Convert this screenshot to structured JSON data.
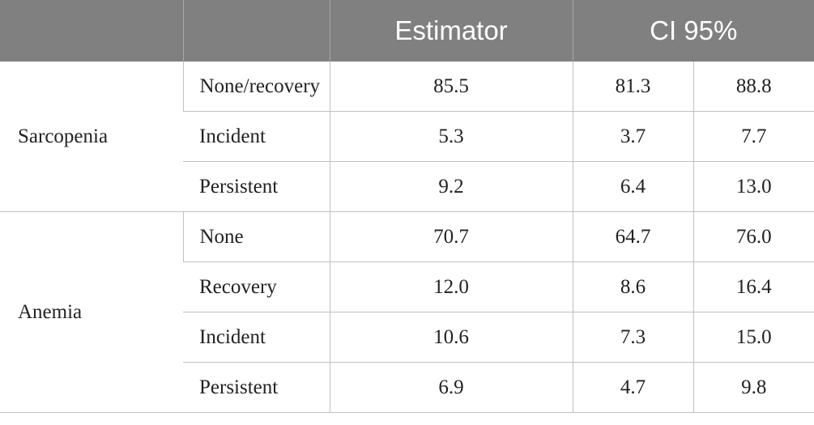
{
  "header": {
    "blank1": "",
    "blank2": "",
    "estimator": "Estimator",
    "ci": "CI 95%"
  },
  "groups": [
    {
      "name": "Sarcopenia",
      "rows": [
        {
          "label": "None/recovery",
          "estimator": "85.5",
          "ci_low": "81.3",
          "ci_high": "88.8"
        },
        {
          "label": "Incident",
          "estimator": "5.3",
          "ci_low": "3.7",
          "ci_high": "7.7"
        },
        {
          "label": "Persistent",
          "estimator": "9.2",
          "ci_low": "6.4",
          "ci_high": "13.0"
        }
      ]
    },
    {
      "name": "Anemia",
      "rows": [
        {
          "label": "None",
          "estimator": "70.7",
          "ci_low": "64.7",
          "ci_high": "76.0"
        },
        {
          "label": "Recovery",
          "estimator": "12.0",
          "ci_low": "8.6",
          "ci_high": "16.4"
        },
        {
          "label": "Incident",
          "estimator": "10.6",
          "ci_low": "7.3",
          "ci_high": "15.0"
        },
        {
          "label": "Persistent",
          "estimator": "6.9",
          "ci_low": "4.7",
          "ci_high": "9.8"
        }
      ]
    }
  ]
}
